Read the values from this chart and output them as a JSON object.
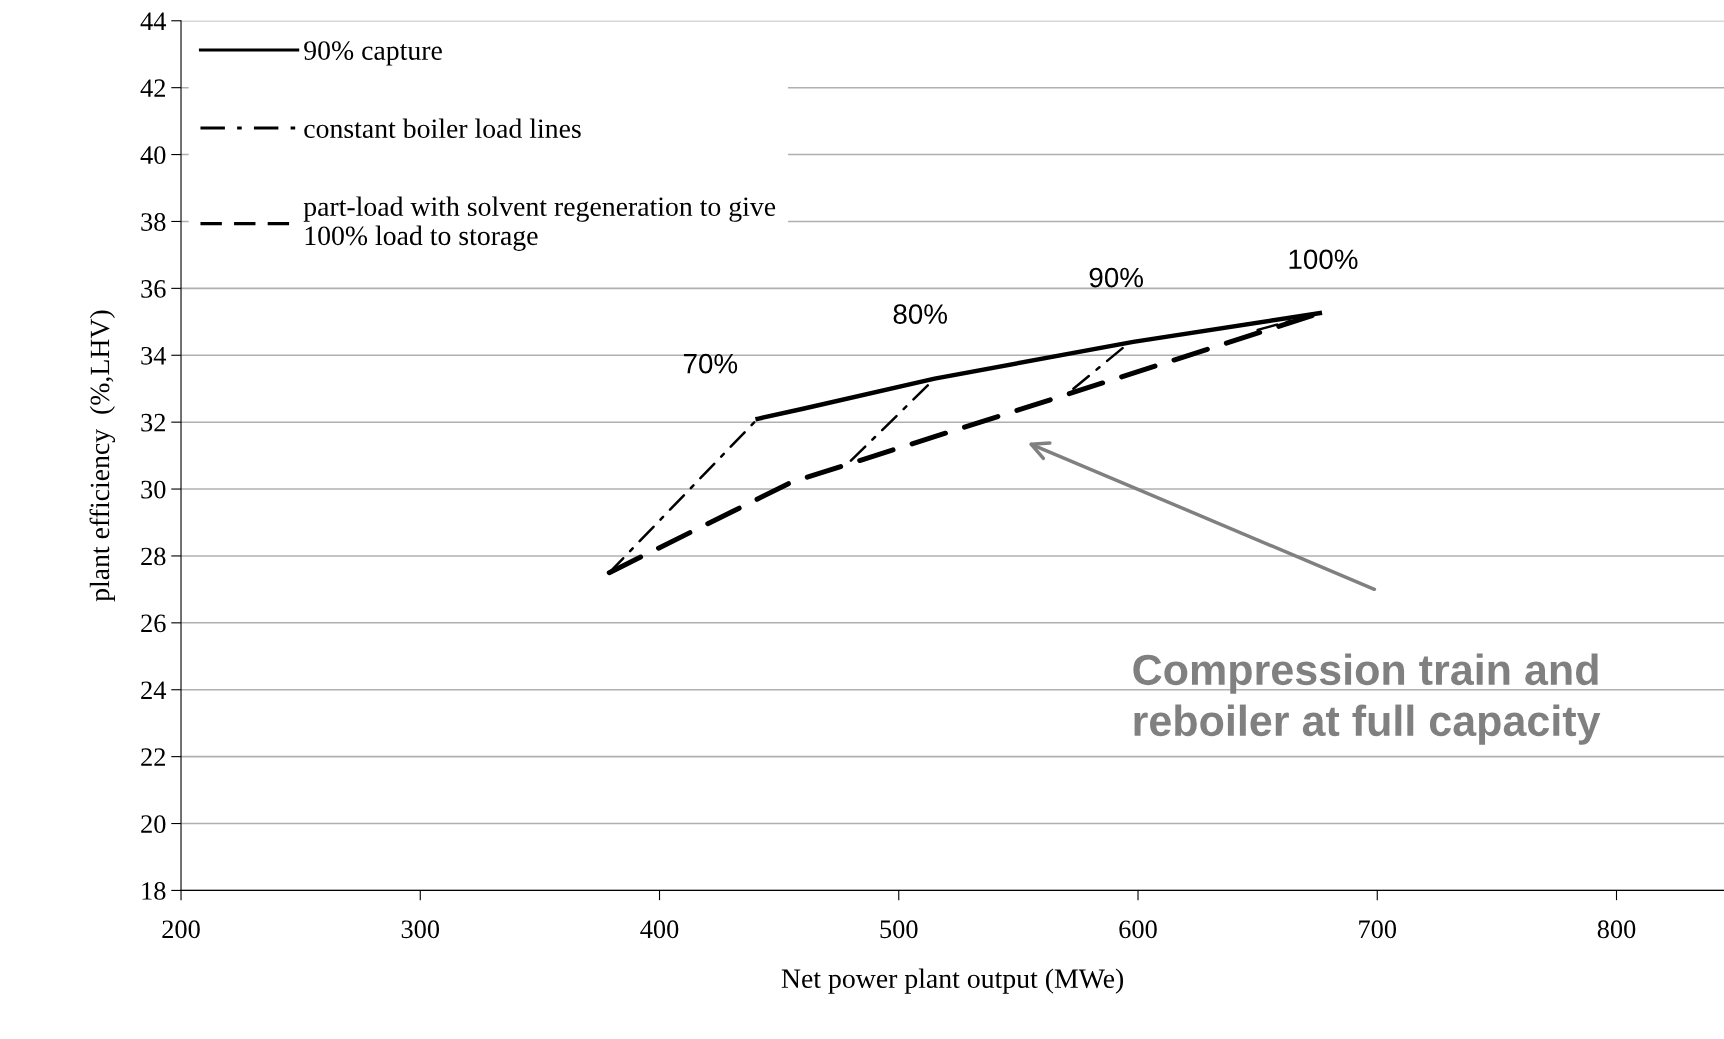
{
  "chart_data": {
    "type": "line",
    "xlabel": "Net power plant output (MWe)",
    "ylabel": "plant efficiency  (%,LHV)",
    "xlim": [
      200,
      845
    ],
    "xticks": [
      200,
      300,
      400,
      500,
      600,
      700,
      800
    ],
    "ylim": [
      18,
      44
    ],
    "yticks": [
      18,
      20,
      22,
      24,
      26,
      28,
      30,
      32,
      34,
      36,
      38,
      40,
      42,
      44
    ],
    "grid": "y",
    "legend": "top left",
    "series": [
      {
        "name": "90% capture",
        "color": "#000000",
        "line_style": "solid",
        "x": [
          441,
          460,
          515,
          598,
          676
        ],
        "values": [
          32.1,
          32.4,
          33.3,
          34.4,
          35.26
        ]
      },
      {
        "name": "constant boiler load lines",
        "color": "#000000",
        "line_style": "dashdot",
        "x": [
          379,
          441,
          null,
          480,
          515,
          null,
          573,
          594,
          null,
          650,
          676
        ],
        "values": [
          27.5,
          32.1,
          null,
          30.85,
          33.3,
          null,
          33.0,
          34.24,
          null,
          34.76,
          35.26
        ]
      },
      {
        "name": "part-load with solvent regeneration to give\n100% load to storage",
        "color": "#000000",
        "line_style": "dashed",
        "x": [
          379,
          455,
          556,
          676
        ],
        "values": [
          27.5,
          30.2,
          32.5,
          35.26
        ]
      }
    ],
    "annotations": [
      "70%",
      "80%",
      "90%",
      "100%",
      "Compression train and\nreboiler at full capacity"
    ]
  }
}
